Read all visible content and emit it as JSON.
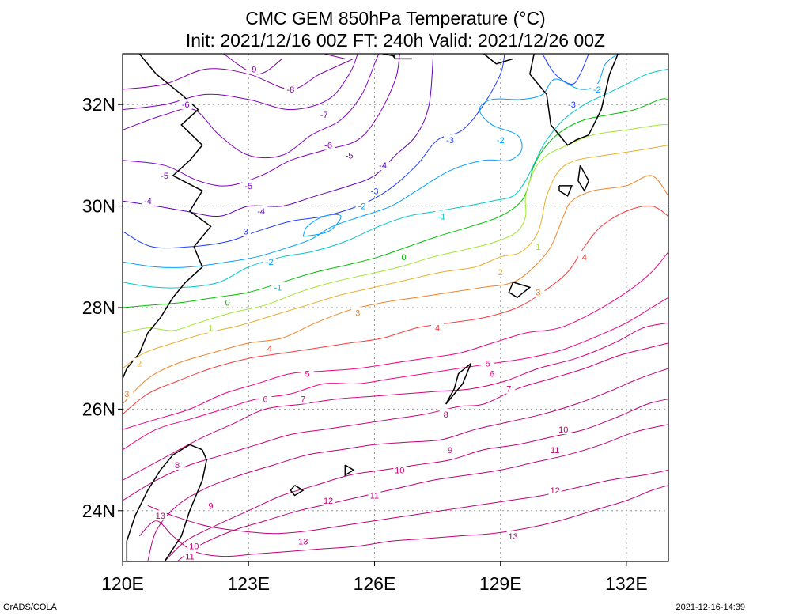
{
  "title": "CMC GEM 850hPa Temperature (°C)",
  "subtitle": "Init: 2021/12/16 00Z  FT: 240h  Valid: 2021/12/26 00Z",
  "footer_left": "GrADS/COLA",
  "footer_right": "2021-12-16-14:39",
  "map": {
    "lon_range": [
      120,
      133
    ],
    "lat_range": [
      23,
      33
    ],
    "lon_ticks": [
      {
        "value": 120,
        "label": "120E"
      },
      {
        "value": 123,
        "label": "123E"
      },
      {
        "value": 126,
        "label": "126E"
      },
      {
        "value": 129,
        "label": "129E"
      },
      {
        "value": 132,
        "label": "132E"
      }
    ],
    "lat_ticks": [
      {
        "value": 24,
        "label": "24N"
      },
      {
        "value": 26,
        "label": "26N"
      },
      {
        "value": 28,
        "label": "28N"
      },
      {
        "value": 30,
        "label": "30N"
      },
      {
        "value": 32,
        "label": "32N"
      }
    ],
    "grid": true
  },
  "contour_levels": [
    {
      "value": -9,
      "label": "-9",
      "color": "#8000a0"
    },
    {
      "value": -8,
      "label": "-8",
      "color": "#8000a0"
    },
    {
      "value": -7,
      "label": "-7",
      "color": "#8000c0"
    },
    {
      "value": -6,
      "label": "-6",
      "color": "#8000c0"
    },
    {
      "value": -5,
      "label": "-5",
      "color": "#8000c0"
    },
    {
      "value": -4,
      "label": "-4",
      "color": "#6000c0"
    },
    {
      "value": -3,
      "label": "-3",
      "color": "#1e3cff"
    },
    {
      "value": -2,
      "label": "-2",
      "color": "#00a0ff"
    },
    {
      "value": -1,
      "label": "-1",
      "color": "#00c8c8"
    },
    {
      "value": 0,
      "label": "0",
      "color": "#00c000"
    },
    {
      "value": 1,
      "label": "1",
      "color": "#a0e632"
    },
    {
      "value": 2,
      "label": "2",
      "color": "#e6af2d"
    },
    {
      "value": 3,
      "label": "3",
      "color": "#f08228"
    },
    {
      "value": 4,
      "label": "4",
      "color": "#fa3c3c"
    },
    {
      "value": 5,
      "label": "5",
      "color": "#f00082"
    },
    {
      "value": 6,
      "label": "6",
      "color": "#f00082"
    },
    {
      "value": 7,
      "label": "7",
      "color": "#d0007a"
    },
    {
      "value": 8,
      "label": "8",
      "color": "#d0007a"
    },
    {
      "value": 9,
      "label": "9",
      "color": "#c00078"
    },
    {
      "value": 10,
      "label": "10",
      "color": "#c00078"
    },
    {
      "value": 11,
      "label": "11",
      "color": "#c00078"
    },
    {
      "value": 12,
      "label": "12",
      "color": "#c00078"
    },
    {
      "value": 13,
      "label": "13",
      "color": "#c00078"
    }
  ]
}
